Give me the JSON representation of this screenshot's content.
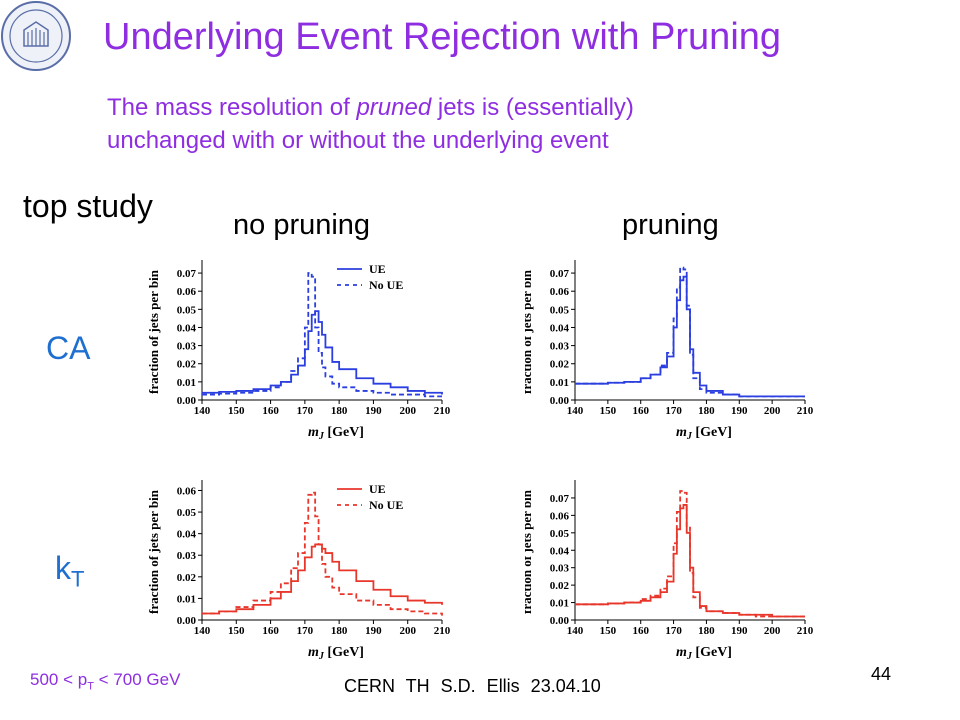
{
  "title": "Underlying Event Rejection with Pruning",
  "subtitle": {
    "line1_before": "The mass resolution of ",
    "line1_italic": "pruned",
    "line1_after": " jets is (essentially)",
    "line2": "unchanged with or without the underlying event"
  },
  "study_label": "top study",
  "columns": {
    "left": "no pruning",
    "right": "pruning"
  },
  "rows": {
    "top": "CA",
    "bottom_main": "k",
    "bottom_sub": "T"
  },
  "footer": {
    "range_pre": "500 < p",
    "range_sub": "T",
    "range_post": " < 700 GeV",
    "credit": "CERN TH S.D. Ellis 23.04.10",
    "page": "44"
  },
  "colors": {
    "title": "#8e2ee0",
    "row_label": "#1e6fd0",
    "ca": "#2b3fe0",
    "kt": "#e8362b"
  },
  "chart_data": [
    {
      "type": "line",
      "panel": "CA, no pruning",
      "xlabel_main": "m",
      "xlabel_sub": "J",
      "xlabel_unit": " [GeV]",
      "ylabel": "fraction of jets per bin",
      "xlim": [
        140,
        210
      ],
      "ylim": [
        0,
        0.075
      ],
      "xticks": [
        "140",
        "150",
        "160",
        "170",
        "180",
        "190",
        "200",
        "210"
      ],
      "yticks": [
        "0.00",
        "0.01",
        "0.02",
        "0.03",
        "0.04",
        "0.05",
        "0.06",
        "0.07"
      ],
      "color": "#2b3fe0",
      "legend": [
        "UE",
        "No UE"
      ],
      "series": [
        {
          "name": "UE",
          "dash": false,
          "x": [
            140,
            145,
            150,
            155,
            160,
            163,
            166,
            168,
            170,
            171,
            172,
            173,
            174,
            175,
            176,
            178,
            180,
            185,
            190,
            195,
            200,
            205,
            210
          ],
          "y": [
            0.004,
            0.0045,
            0.005,
            0.006,
            0.008,
            0.01,
            0.014,
            0.019,
            0.028,
            0.038,
            0.047,
            0.049,
            0.043,
            0.036,
            0.029,
            0.021,
            0.017,
            0.012,
            0.009,
            0.007,
            0.005,
            0.004,
            0.003
          ]
        },
        {
          "name": "No UE",
          "dash": true,
          "x": [
            140,
            145,
            150,
            155,
            160,
            163,
            166,
            168,
            170,
            171,
            172,
            173,
            174,
            175,
            176,
            178,
            180,
            185,
            190,
            195,
            200,
            205,
            210
          ],
          "y": [
            0.003,
            0.0035,
            0.004,
            0.005,
            0.007,
            0.01,
            0.016,
            0.023,
            0.04,
            0.07,
            0.068,
            0.04,
            0.026,
            0.018,
            0.013,
            0.009,
            0.007,
            0.005,
            0.004,
            0.003,
            0.003,
            0.002,
            0.002
          ]
        }
      ]
    },
    {
      "type": "line",
      "panel": "CA, pruning",
      "xlabel_main": "m",
      "xlabel_sub": "J",
      "xlabel_unit": " [GeV]",
      "ylabel": "fraction of jets per bin",
      "xlim": [
        140,
        210
      ],
      "ylim": [
        0,
        0.075
      ],
      "xticks": [
        "140",
        "150",
        "160",
        "170",
        "180",
        "190",
        "200",
        "210"
      ],
      "yticks": [
        "0.00",
        "0.01",
        "0.02",
        "0.03",
        "0.04",
        "0.05",
        "0.06",
        "0.07"
      ],
      "color": "#2b3fe0",
      "legend": [],
      "series": [
        {
          "name": "UE",
          "dash": false,
          "x": [
            140,
            145,
            150,
            155,
            160,
            163,
            166,
            168,
            170,
            171,
            172,
            173,
            174,
            175,
            176,
            178,
            180,
            185,
            190,
            195,
            200,
            205,
            210
          ],
          "y": [
            0.009,
            0.009,
            0.0095,
            0.01,
            0.012,
            0.014,
            0.018,
            0.024,
            0.04,
            0.055,
            0.066,
            0.068,
            0.05,
            0.028,
            0.015,
            0.008,
            0.005,
            0.003,
            0.002,
            0.002,
            0.002,
            0.002,
            0.002
          ]
        },
        {
          "name": "No UE",
          "dash": true,
          "x": [
            140,
            145,
            150,
            155,
            160,
            163,
            166,
            168,
            170,
            171,
            172,
            173,
            174,
            175,
            176,
            178,
            180,
            185,
            190,
            195,
            200,
            205,
            210
          ],
          "y": [
            0.009,
            0.009,
            0.0095,
            0.01,
            0.012,
            0.014,
            0.019,
            0.026,
            0.045,
            0.062,
            0.073,
            0.072,
            0.052,
            0.025,
            0.012,
            0.006,
            0.004,
            0.003,
            0.002,
            0.002,
            0.002,
            0.002,
            0.002
          ]
        }
      ]
    },
    {
      "type": "line",
      "panel": "kT, no pruning",
      "xlabel_main": "m",
      "xlabel_sub": "J",
      "xlabel_unit": " [GeV]",
      "ylabel": "fraction of jets per bin",
      "xlim": [
        140,
        210
      ],
      "ylim": [
        0,
        0.063
      ],
      "xticks": [
        "140",
        "150",
        "160",
        "170",
        "180",
        "190",
        "200",
        "210"
      ],
      "yticks": [
        "0.00",
        "0.01",
        "0.02",
        "0.03",
        "0.04",
        "0.05",
        "0.06"
      ],
      "color": "#e8362b",
      "legend": [
        "UE",
        "No UE"
      ],
      "series": [
        {
          "name": "UE",
          "dash": false,
          "x": [
            140,
            145,
            150,
            155,
            160,
            163,
            166,
            168,
            170,
            172,
            173,
            174,
            175,
            176,
            178,
            180,
            185,
            190,
            195,
            200,
            205,
            210
          ],
          "y": [
            0.003,
            0.004,
            0.005,
            0.007,
            0.01,
            0.013,
            0.018,
            0.023,
            0.029,
            0.034,
            0.035,
            0.035,
            0.033,
            0.031,
            0.027,
            0.023,
            0.018,
            0.014,
            0.011,
            0.009,
            0.008,
            0.007
          ]
        },
        {
          "name": "No UE",
          "dash": true,
          "x": [
            140,
            145,
            150,
            155,
            160,
            163,
            166,
            168,
            170,
            171,
            172,
            173,
            174,
            175,
            176,
            178,
            180,
            185,
            190,
            195,
            200,
            205,
            210
          ],
          "y": [
            0.003,
            0.004,
            0.006,
            0.009,
            0.013,
            0.017,
            0.024,
            0.031,
            0.045,
            0.058,
            0.059,
            0.048,
            0.035,
            0.026,
            0.02,
            0.015,
            0.012,
            0.009,
            0.007,
            0.005,
            0.004,
            0.003,
            0.002
          ]
        }
      ]
    },
    {
      "type": "line",
      "panel": "kT, pruning",
      "xlabel_main": "m",
      "xlabel_sub": "J",
      "xlabel_unit": " [GeV]",
      "ylabel": "fraction of jets per bin",
      "xlim": [
        140,
        210
      ],
      "ylim": [
        0,
        0.078
      ],
      "xticks": [
        "140",
        "150",
        "160",
        "170",
        "180",
        "190",
        "200",
        "210"
      ],
      "yticks": [
        "0.00",
        "0.01",
        "0.02",
        "0.03",
        "0.04",
        "0.05",
        "0.06",
        "0.07"
      ],
      "color": "#e8362b",
      "legend": [],
      "series": [
        {
          "name": "UE",
          "dash": false,
          "x": [
            140,
            145,
            150,
            155,
            160,
            163,
            166,
            168,
            170,
            171,
            172,
            173,
            174,
            175,
            176,
            178,
            180,
            185,
            190,
            195,
            200,
            205,
            210
          ],
          "y": [
            0.009,
            0.009,
            0.0095,
            0.01,
            0.011,
            0.013,
            0.016,
            0.022,
            0.038,
            0.052,
            0.064,
            0.066,
            0.05,
            0.03,
            0.016,
            0.008,
            0.005,
            0.004,
            0.003,
            0.003,
            0.002,
            0.002,
            0.002
          ]
        },
        {
          "name": "No UE",
          "dash": true,
          "x": [
            140,
            145,
            150,
            155,
            160,
            163,
            166,
            168,
            170,
            171,
            172,
            173,
            174,
            175,
            176,
            178,
            180,
            185,
            190,
            195,
            200,
            205,
            210
          ],
          "y": [
            0.009,
            0.009,
            0.0095,
            0.01,
            0.012,
            0.014,
            0.018,
            0.025,
            0.044,
            0.062,
            0.074,
            0.073,
            0.053,
            0.027,
            0.013,
            0.007,
            0.005,
            0.004,
            0.003,
            0.002,
            0.002,
            0.002,
            0.002
          ]
        }
      ]
    }
  ]
}
